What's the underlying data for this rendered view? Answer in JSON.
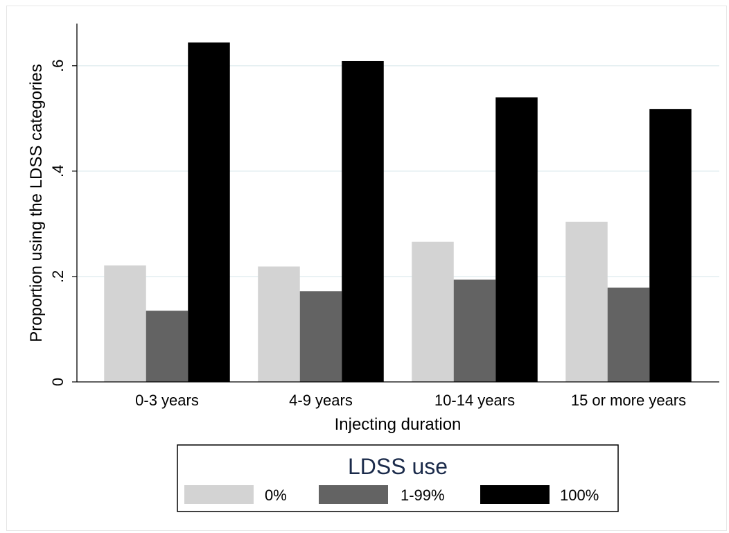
{
  "chart_data": {
    "type": "bar",
    "categories": [
      "0-3 years",
      "4-9 years",
      "10-14 years",
      "15 or more years"
    ],
    "series": [
      {
        "name": "0%",
        "color": "#d3d3d3",
        "values": [
          0.221,
          0.219,
          0.266,
          0.304
        ]
      },
      {
        "name": "1-99%",
        "color": "#636363",
        "values": [
          0.135,
          0.172,
          0.194,
          0.179
        ]
      },
      {
        "name": "100%",
        "color": "#000000",
        "values": [
          0.644,
          0.609,
          0.54,
          0.518
        ]
      }
    ],
    "xlabel": "Injecting duration",
    "ylabel": "Proportion using the LDSS categories",
    "ylim": [
      0,
      0.68
    ],
    "yticks": [
      0,
      0.2,
      0.4,
      0.6
    ],
    "ytick_labels": [
      "0",
      ".2",
      ".4",
      ".6"
    ],
    "grid": true,
    "legend": {
      "title": "LDSS use",
      "placement": "bottom"
    }
  }
}
